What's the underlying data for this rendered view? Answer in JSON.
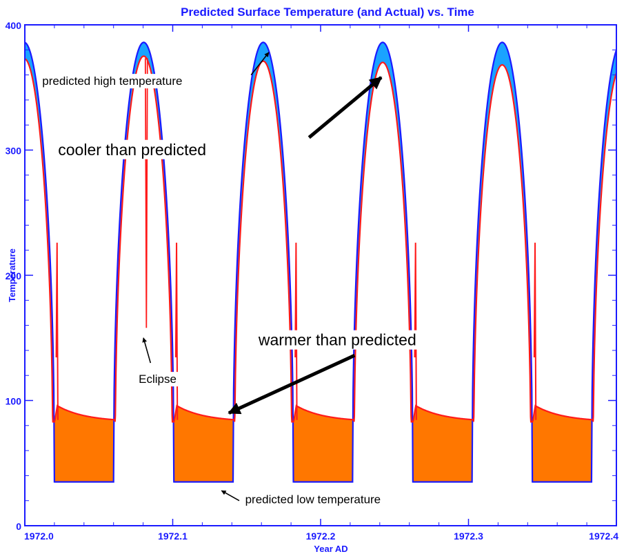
{
  "chart_data": {
    "type": "area",
    "title": "Predicted Surface Temperature (and Actual) vs. Time",
    "xlabel": "Year AD",
    "ylabel": "Temperature",
    "xlim": [
      1972.0,
      1972.4
    ],
    "ylim": [
      0,
      400
    ],
    "x_ticks": [
      1972.0,
      1972.1,
      1972.2,
      1972.3,
      1972.4
    ],
    "x_tick_labels": [
      "1972.0",
      "1972.1",
      "1972.2",
      "1972.3",
      "1972.4"
    ],
    "y_ticks": [
      0,
      100,
      200,
      300,
      400
    ],
    "y_tick_labels": [
      "0",
      "100",
      "200",
      "300",
      "400"
    ],
    "grid": false,
    "period_years": 0.0808,
    "series": [
      {
        "role": "predicted",
        "color": "#1a1aff",
        "band_color": "#1aa3ff",
        "day_peak": 386,
        "night_low": 35,
        "cycles": [
          {
            "sunrise": 1971.9792,
            "sunset": 1972.02
          },
          {
            "sunrise": 1972.06,
            "sunset": 1972.1008
          },
          {
            "sunrise": 1972.1408,
            "sunset": 1972.1816
          },
          {
            "sunrise": 1972.2216,
            "sunset": 1972.2624
          },
          {
            "sunrise": 1972.3024,
            "sunset": 1972.3432
          },
          {
            "sunrise": 1972.3832,
            "sunset": 1972.424
          }
        ]
      },
      {
        "role": "actual",
        "color": "#ff1a1a",
        "band_color": "#ff7700",
        "day_peaks": [
          373,
          375,
          371,
          370,
          368,
          368
        ],
        "spike": 226,
        "night_start": 98,
        "night_end": 83
      }
    ],
    "eclipse": {
      "x": 1972.0822,
      "y_low": 158
    },
    "annotations": [
      {
        "id": "predicted-high",
        "text": "predicted high temperature",
        "x": 1972.0118,
        "y": 352,
        "arrow_from": [
          1972.153,
          360
        ],
        "arrow_to": [
          1972.165,
          378
        ]
      },
      {
        "id": "cooler",
        "text": "cooler than predicted",
        "x": 1972.0225,
        "y": 296,
        "arrow_from": [
          1972.1922,
          310
        ],
        "arrow_to": [
          1972.241,
          358
        ]
      },
      {
        "id": "warmer",
        "text": "warmer than predicted",
        "x": 1972.158,
        "y": 144,
        "arrow_from": [
          1972.223,
          136
        ],
        "arrow_to": [
          1972.138,
          90
        ]
      },
      {
        "id": "eclipse",
        "text": "Eclipse",
        "x": 1972.077,
        "y": 114,
        "arrow_from": [
          1972.085,
          130
        ],
        "arrow_to": [
          1972.0802,
          150
        ]
      },
      {
        "id": "predicted-low",
        "text": "predicted low temperature",
        "x": 1972.149,
        "y": 18,
        "arrow_from": [
          1972.145,
          20
        ],
        "arrow_to": [
          1972.133,
          28
        ]
      }
    ]
  }
}
